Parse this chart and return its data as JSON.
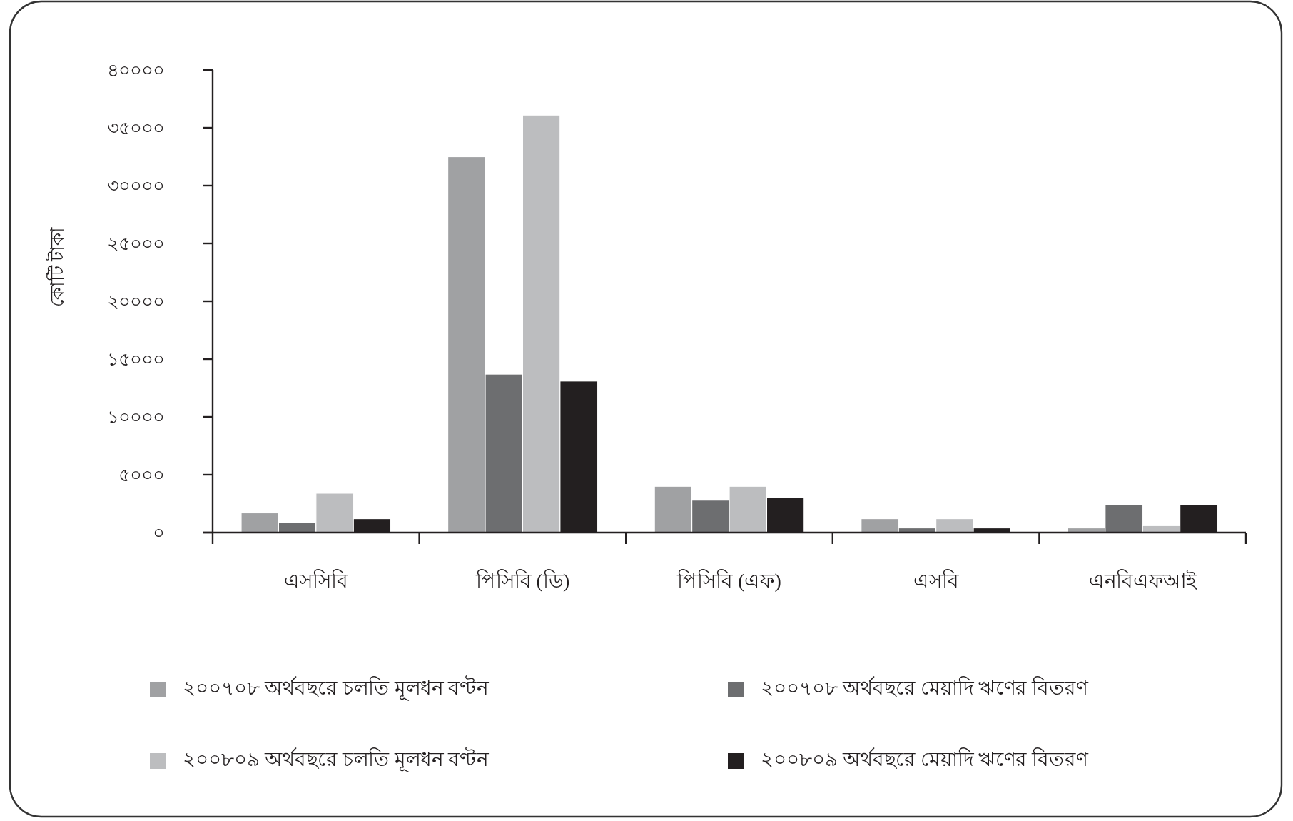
{
  "chart_data": {
    "type": "bar",
    "ylabel": "কোটি টাকা",
    "categories": [
      "এসসিবি",
      "পিসিবি (ডি)",
      "পিসিবি (এফ)",
      "এসবি",
      "এনবিএফআই"
    ],
    "series": [
      {
        "name": "২০০৭০৮ অর্থবছরে চলতি মূলধন বণ্টন",
        "color": "#a0a1a3",
        "values": [
          1700,
          32500,
          4000,
          1200,
          400
        ]
      },
      {
        "name": "২০০৭০৮ অর্থবছরে মেয়াদি ঋণের বিতরণ",
        "color": "#6d6e70",
        "values": [
          900,
          13700,
          2800,
          400,
          2400
        ]
      },
      {
        "name": "২০০৮০৯ অর্থবছরে চলতি মূলধন বণ্টন",
        "color": "#bcbdbf",
        "values": [
          3400,
          36100,
          4000,
          1200,
          600
        ]
      },
      {
        "name": "২০০৮০৯ অর্থবছরে মেয়াদি ঋণের বিতরণ",
        "color": "#231f20",
        "values": [
          1200,
          13100,
          3000,
          400,
          2400
        ]
      }
    ],
    "ylim": [
      0,
      40000
    ],
    "yticks": [
      {
        "value": 0,
        "label": "০"
      },
      {
        "value": 5000,
        "label": "৫০০০"
      },
      {
        "value": 10000,
        "label": "১০০০০"
      },
      {
        "value": 15000,
        "label": "১৫০০০"
      },
      {
        "value": 20000,
        "label": "২০০০০"
      },
      {
        "value": 25000,
        "label": "২৫০০০"
      },
      {
        "value": 30000,
        "label": "৩০০০০"
      },
      {
        "value": 35000,
        "label": "৩৫০০০"
      },
      {
        "value": 40000,
        "label": "৪০০০০"
      }
    ],
    "legend": "bottom"
  }
}
